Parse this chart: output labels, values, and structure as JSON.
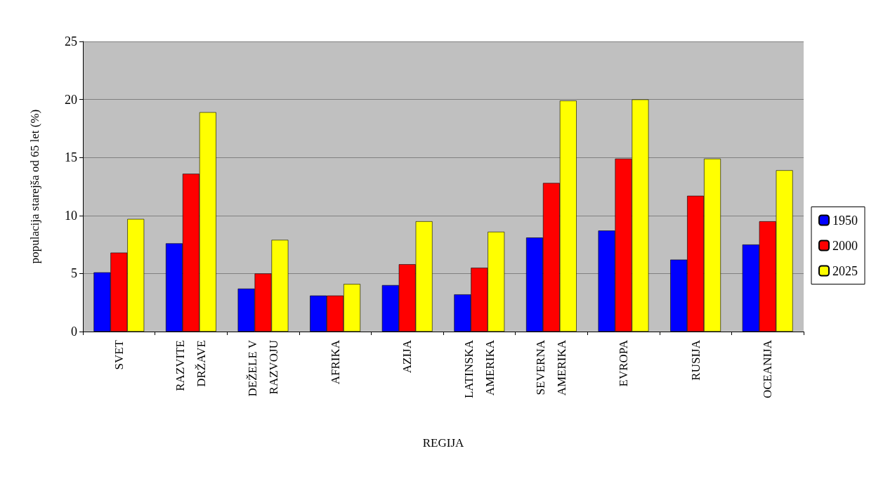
{
  "chart_data": {
    "type": "bar",
    "xlabel": "REGIJA",
    "ylabel": "populacija starejša od 65 let (%)",
    "categories": [
      "SVET",
      "RAZVITE\nDRŽAVE",
      "DEŽELE V\nRAZVOJU",
      "AFRIKA",
      "AZIJA",
      "LATINSKA\nAMERIKA",
      "SEVERNA\nAMERIKA",
      "EVROPA",
      "RUSIJA",
      "OCEANIJA"
    ],
    "series": [
      {
        "name": "1950",
        "color": "#0000ff",
        "values": [
          5.1,
          7.6,
          3.7,
          3.1,
          4.0,
          3.2,
          8.1,
          8.7,
          6.2,
          7.5
        ]
      },
      {
        "name": "2000",
        "color": "#ff0000",
        "values": [
          6.8,
          13.6,
          5.0,
          3.1,
          5.8,
          5.5,
          12.8,
          14.9,
          11.7,
          9.5
        ]
      },
      {
        "name": "2025",
        "color": "#ffff00",
        "values": [
          9.7,
          18.9,
          7.9,
          4.1,
          9.5,
          8.6,
          19.9,
          20.0,
          14.9,
          13.9
        ]
      }
    ],
    "ylim": [
      0,
      25
    ],
    "yticks": [
      0,
      5,
      10,
      15,
      20,
      25
    ],
    "grid": "y",
    "legend": "right"
  }
}
